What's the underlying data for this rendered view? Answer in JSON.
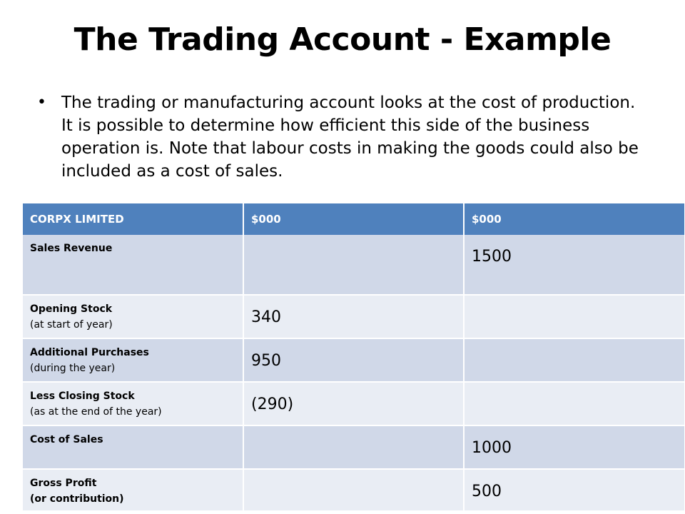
{
  "title": "The Trading Account - Example",
  "bullet": "The trading or manufacturing account looks at the cost of production.  It is possible to determine how efficient this side of the business operation is.   Note that labour costs in making the goods could also be included as a cost of sales.",
  "table": {
    "headers": [
      "CORPX LIMITED",
      "$000",
      "$000"
    ],
    "rows": [
      {
        "label": "Sales Revenue",
        "sub": "",
        "col2": "",
        "col3": "1500"
      },
      {
        "label": "Opening  Stock",
        "sub": "(at start of year)",
        "col2": "340",
        "col3": ""
      },
      {
        "label": "Additional  Purchases",
        "sub": "(during the year)",
        "col2": "950",
        "col3": ""
      },
      {
        "label": "Less Closing  Stock",
        "sub": "(as at the end of the year)",
        "col2": "(290)",
        "col3": ""
      },
      {
        "label": "Cost of Sales",
        "sub": "",
        "col2": "",
        "col3": "1000"
      },
      {
        "label": "Gross Profit",
        "sub": "(or contribution)",
        "col2": "",
        "col3": "500"
      }
    ]
  }
}
